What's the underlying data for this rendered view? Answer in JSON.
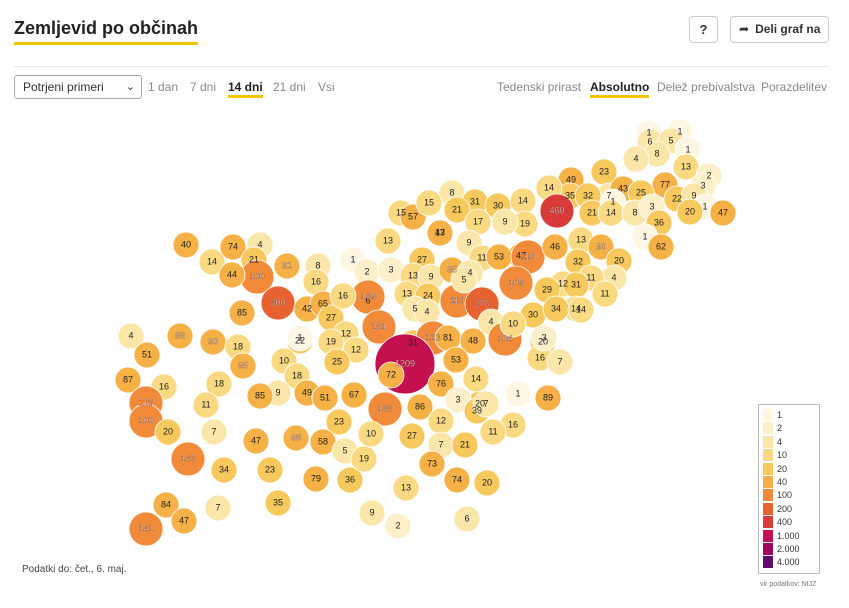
{
  "header": {
    "title": "Zemljevid po občinah",
    "help_label": "?",
    "share_label": "Deli graf na"
  },
  "controls": {
    "select_value": "Potrjeni primeri",
    "periods": [
      "1 dan",
      "7 dni",
      "14 dni",
      "21 dni",
      "Vsi"
    ],
    "active_period": "14 dni",
    "metrics": [
      "Tedenski prirast",
      "Absolutno",
      "Delež prebivalstva",
      "Porazdelitev"
    ],
    "active_metric": "Absolutno"
  },
  "legend": {
    "entries": [
      {
        "label": "1",
        "color": "#fdf6e3"
      },
      {
        "label": "2",
        "color": "#fcefc9"
      },
      {
        "label": "4",
        "color": "#fbe6a9"
      },
      {
        "label": "10",
        "color": "#f9da82"
      },
      {
        "label": "20",
        "color": "#f7c95d"
      },
      {
        "label": "40",
        "color": "#f5b145"
      },
      {
        "label": "100",
        "color": "#f18b3a"
      },
      {
        "label": "200",
        "color": "#e8622f"
      },
      {
        "label": "400",
        "color": "#d93a3a"
      },
      {
        "label": "1.000",
        "color": "#c4104f"
      },
      {
        "label": "2.000",
        "color": "#a1085f"
      },
      {
        "label": "4.000",
        "color": "#5e0b6b"
      }
    ]
  },
  "map_data": {
    "municipality_counts": [
      "1",
      "1",
      "6",
      "5",
      "8",
      "4",
      "1",
      "13",
      "2",
      "3",
      "23",
      "77",
      "7",
      "43",
      "25",
      "22",
      "9",
      "1",
      "49",
      "35",
      "32",
      "14",
      "460",
      "21",
      "1",
      "14",
      "8",
      "3",
      "20",
      "36",
      "47",
      "15",
      "57",
      "8",
      "15",
      "31",
      "21",
      "30",
      "14",
      "19",
      "9",
      "17",
      "9",
      "13",
      "47",
      "1",
      "62",
      "40",
      "74",
      "4",
      "21",
      "100",
      "91",
      "8",
      "14",
      "44",
      "13",
      "1",
      "2",
      "3",
      "27",
      "13",
      "9",
      "11",
      "53",
      "110",
      "46",
      "13",
      "32",
      "90",
      "20",
      "4",
      "11",
      "11",
      "16",
      "6",
      "95",
      "4",
      "109",
      "12",
      "31",
      "29",
      "14",
      "300",
      "42",
      "65",
      "27",
      "149",
      "13",
      "24",
      "110",
      "276",
      "4",
      "16",
      "5",
      "4",
      "5",
      "20",
      "30",
      "34",
      "47",
      "14",
      "4",
      "98",
      "85",
      "22",
      "12",
      "181",
      "31",
      "123",
      "81",
      "48",
      "104",
      "10",
      "90",
      "18",
      "19",
      "12",
      "51",
      "10",
      "25",
      "1209",
      "72",
      "16",
      "7",
      "3",
      "20",
      "1",
      "95",
      "18",
      "9",
      "49",
      "67",
      "183",
      "86",
      "76",
      "14",
      "87",
      "18",
      "53",
      "16",
      "116",
      "11",
      "85",
      "51",
      "23",
      "10",
      "3",
      "39",
      "7",
      "1",
      "89",
      "100",
      "20",
      "7",
      "27",
      "12",
      "16",
      "11",
      "47",
      "98",
      "58",
      "5",
      "7",
      "21",
      "146",
      "34",
      "23",
      "79",
      "36",
      "19",
      "73",
      "13",
      "74",
      "20",
      "35",
      "84",
      "7",
      "9",
      "2",
      "6",
      "47",
      "141",
      "31"
    ],
    "highlight_labels": [
      "1209",
      "460",
      "300",
      "276",
      "183",
      "181",
      "149",
      "146",
      "141",
      "123",
      "116",
      "110",
      "110",
      "109",
      "104",
      "100",
      "100",
      "98",
      "98",
      "95",
      "95",
      "91",
      "90",
      "90",
      "85",
      "85",
      "84",
      "81"
    ]
  },
  "footer": {
    "data_date": "Podatki do: čet., 6. maj.",
    "source": "vir podatkov: NIJZ"
  }
}
